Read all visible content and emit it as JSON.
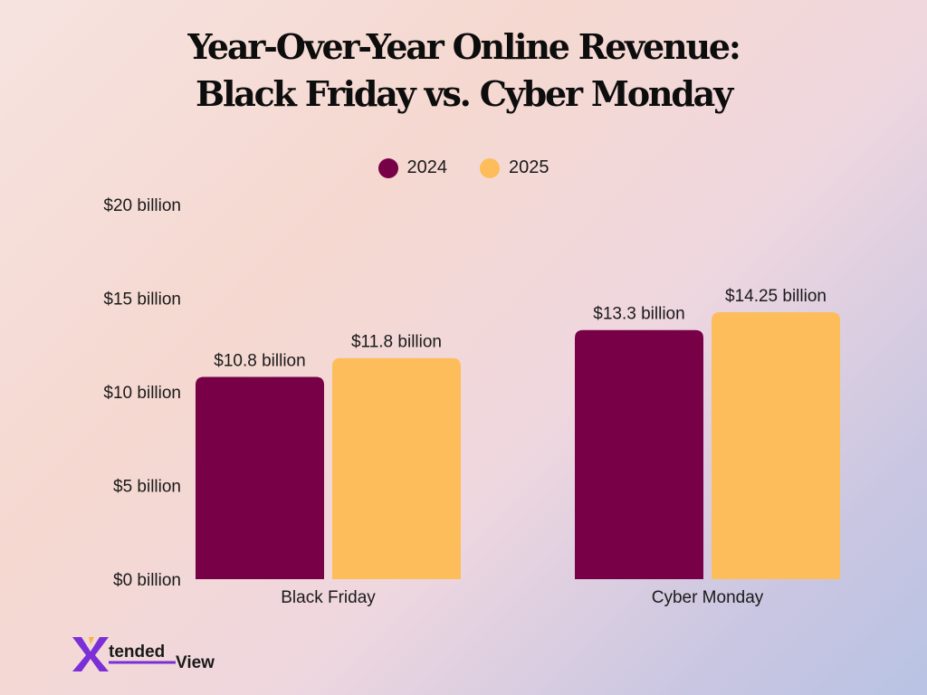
{
  "chart_data": {
    "type": "bar",
    "title_lines": [
      "Year-Over-Year Online Revenue:",
      "Black Friday vs. Cyber Monday"
    ],
    "categories": [
      "Black Friday",
      "Cyber Monday"
    ],
    "series": [
      {
        "name": "2024",
        "color": "#770047",
        "values": [
          10.8,
          13.3
        ],
        "labels": [
          "$10.8 billion",
          "$13.3 billion"
        ]
      },
      {
        "name": "2025",
        "color": "#fdbd5b",
        "values": [
          11.8,
          14.25
        ],
        "labels": [
          "$11.8 billion",
          "$14.25 billion"
        ]
      }
    ],
    "ylim": [
      0,
      20
    ],
    "yticks": [
      {
        "value": 0,
        "label": "$0 billion"
      },
      {
        "value": 5,
        "label": "$5 billion"
      },
      {
        "value": 10,
        "label": "$10 billion"
      },
      {
        "value": 15,
        "label": "$15 billion"
      },
      {
        "value": 20,
        "label": "$20 billion"
      }
    ],
    "legend_position": "top-center",
    "grid": false
  },
  "brand": {
    "logo_text_x": "X",
    "logo_text_tended": "tended",
    "logo_text_view": "View",
    "accent": "#7b2fd6"
  }
}
